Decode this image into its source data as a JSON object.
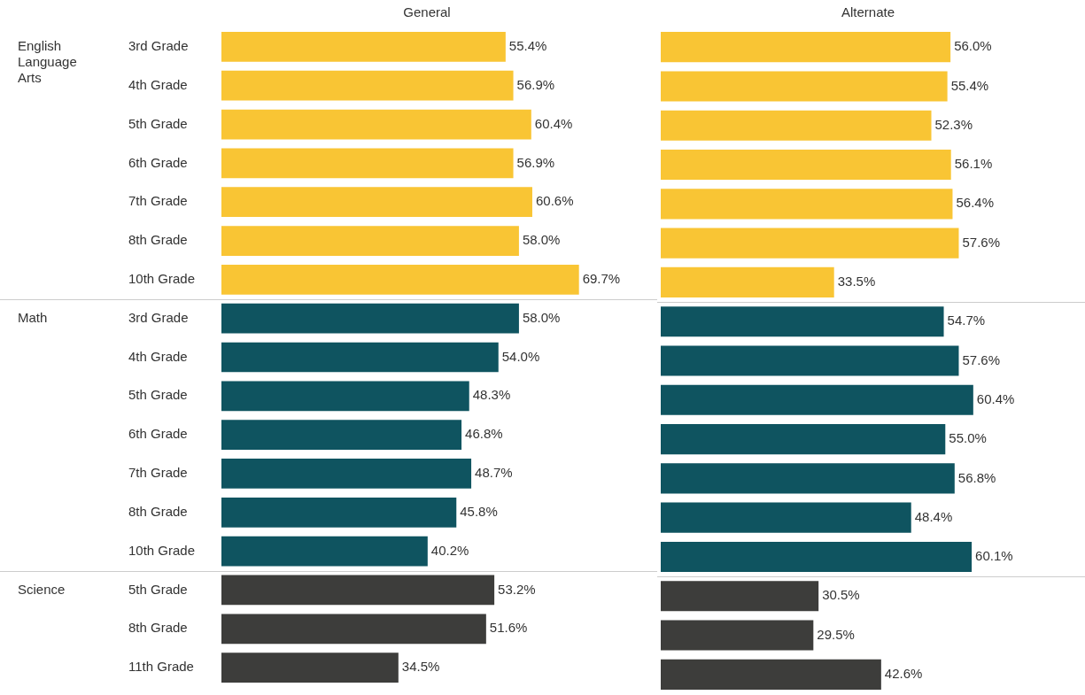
{
  "chart_data": [
    {
      "type": "bar",
      "title": "General",
      "orientation": "horizontal",
      "stacked": true,
      "tick_labels": "y",
      "annotations": [
        "English Language Arts",
        "Math",
        "Science"
      ],
      "categories": [
        "3rd Grade",
        "4th Grade",
        "5th Grade",
        "6th Grade",
        "7th Grade",
        "8th Grade",
        "10th Grade",
        "3rd Grade",
        "4th Grade",
        "5th Grade",
        "6th Grade",
        "7th Grade",
        "8th Grade",
        "10th Grade",
        "5th Grade",
        "8th Grade",
        "11th Grade"
      ],
      "series": [
        {
          "color": "#f9c534",
          "values": [
            55.4,
            56.9,
            60.4,
            56.9,
            60.6,
            58.0,
            69.7,
            null,
            null,
            null,
            null,
            null,
            null,
            null,
            null,
            null,
            null
          ],
          "value_labels": [
            "55.4%",
            "56.9%",
            "60.4%",
            "56.9%",
            "60.6%",
            "58.0%",
            "69.7%",
            null,
            null,
            null,
            null,
            null,
            null,
            null,
            null,
            null,
            null
          ]
        },
        {
          "color": "#0f5460",
          "values": [
            null,
            null,
            null,
            null,
            null,
            null,
            null,
            58.0,
            54.0,
            48.3,
            46.8,
            48.7,
            45.8,
            40.2,
            null,
            null,
            null
          ],
          "value_labels": [
            null,
            null,
            null,
            null,
            null,
            null,
            null,
            "58.0%",
            "54.0%",
            "48.3%",
            "46.8%",
            "48.7%",
            "45.8%",
            "40.2%",
            null,
            null,
            null
          ]
        },
        {
          "color": "#3d3d3b",
          "values": [
            null,
            null,
            null,
            null,
            null,
            null,
            null,
            null,
            null,
            null,
            null,
            null,
            null,
            null,
            53.2,
            51.6,
            34.5
          ],
          "value_labels": [
            null,
            null,
            null,
            null,
            null,
            null,
            null,
            null,
            null,
            null,
            null,
            null,
            null,
            null,
            "53.2%",
            "51.6%",
            "34.5%"
          ]
        }
      ]
    },
    {
      "type": "bar",
      "title": "Alternate",
      "orientation": "horizontal",
      "stacked": true,
      "tick_labels": false,
      "series": [
        {
          "color": "#f9c534",
          "values": [
            56.0,
            55.4,
            52.3,
            56.1,
            56.4,
            57.6,
            33.5,
            null,
            null,
            null,
            null,
            null,
            null,
            null,
            null,
            null,
            null
          ],
          "value_labels": [
            "56.0%",
            "55.4%",
            "52.3%",
            "56.1%",
            "56.4%",
            "57.6%",
            "33.5%",
            null,
            null,
            null,
            null,
            null,
            null,
            null,
            null,
            null,
            null
          ]
        },
        {
          "color": "#0f5460",
          "values": [
            null,
            null,
            null,
            null,
            null,
            null,
            null,
            54.7,
            57.6,
            60.4,
            55.0,
            56.8,
            48.4,
            60.1,
            null,
            null,
            null
          ],
          "value_labels": [
            null,
            null,
            null,
            null,
            null,
            null,
            null,
            "54.7%",
            "57.6%",
            "60.4%",
            "55.0%",
            "56.8%",
            "48.4%",
            "60.1%",
            null,
            null,
            null
          ]
        },
        {
          "color": "#3d3d3b",
          "values": [
            null,
            null,
            null,
            null,
            null,
            null,
            null,
            null,
            null,
            null,
            null,
            null,
            null,
            null,
            30.5,
            29.5,
            42.6
          ],
          "value_labels": [
            null,
            null,
            null,
            null,
            null,
            null,
            null,
            null,
            null,
            null,
            null,
            null,
            null,
            null,
            "30.5%",
            "29.5%",
            "42.6%"
          ]
        }
      ]
    }
  ]
}
